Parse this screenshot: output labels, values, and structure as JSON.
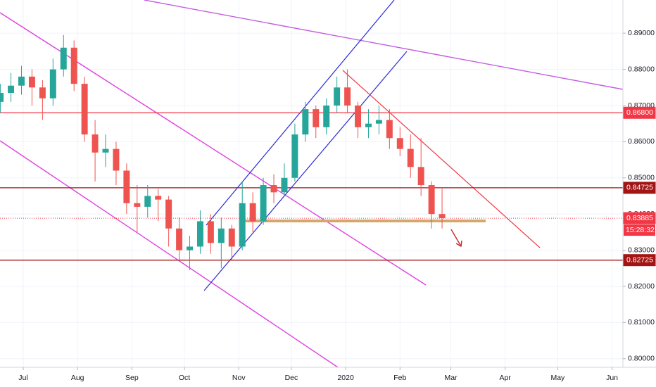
{
  "chart_data": {
    "type": "candlestick",
    "x": [
      -13,
      -7,
      -1,
      5,
      11,
      17,
      23,
      29,
      35,
      41,
      47,
      53,
      59,
      65,
      71,
      77,
      83,
      89,
      95,
      101,
      107,
      113,
      119,
      125,
      131,
      137,
      143,
      149,
      155,
      161,
      167,
      173,
      179,
      185,
      191,
      197,
      203,
      209,
      215,
      221,
      227,
      233,
      239
    ],
    "open": [
      0.871,
      0.8735,
      0.8755,
      0.878,
      0.875,
      0.872,
      0.88,
      0.886,
      0.876,
      0.862,
      0.857,
      0.858,
      0.852,
      0.843,
      0.842,
      0.845,
      0.844,
      0.836,
      0.83,
      0.831,
      0.838,
      0.832,
      0.836,
      0.831,
      0.843,
      0.838,
      0.848,
      0.846,
      0.85,
      0.862,
      0.869,
      0.864,
      0.87,
      0.875,
      0.87,
      0.864,
      0.865,
      0.866,
      0.861,
      0.858,
      0.853,
      0.848,
      0.84
    ],
    "high": [
      0.876,
      0.879,
      0.881,
      0.88,
      0.877,
      0.883,
      0.8895,
      0.888,
      0.878,
      0.866,
      0.862,
      0.86,
      0.854,
      0.848,
      0.848,
      0.847,
      0.845,
      0.839,
      0.834,
      0.841,
      0.84,
      0.839,
      0.837,
      0.849,
      0.846,
      0.85,
      0.851,
      0.854,
      0.865,
      0.871,
      0.87,
      0.872,
      0.878,
      0.88,
      0.871,
      0.869,
      0.87,
      0.869,
      0.864,
      0.862,
      0.861,
      0.849,
      0.847
    ],
    "low": [
      0.868,
      0.871,
      0.873,
      0.87,
      0.866,
      0.87,
      0.878,
      0.874,
      0.86,
      0.849,
      0.853,
      0.848,
      0.84,
      0.835,
      0.839,
      0.838,
      0.831,
      0.827,
      0.8245,
      0.829,
      0.829,
      0.825,
      0.827,
      0.83,
      0.835,
      0.837,
      0.843,
      0.845,
      0.849,
      0.86,
      0.861,
      0.862,
      0.868,
      0.868,
      0.861,
      0.861,
      0.862,
      0.858,
      0.856,
      0.85,
      0.845,
      0.836,
      0.836
    ],
    "close": [
      0.8735,
      0.8755,
      0.878,
      0.875,
      0.872,
      0.88,
      0.886,
      0.876,
      0.862,
      0.857,
      0.858,
      0.852,
      0.843,
      0.842,
      0.845,
      0.844,
      0.836,
      0.83,
      0.831,
      0.838,
      0.832,
      0.836,
      0.831,
      0.843,
      0.838,
      0.848,
      0.846,
      0.85,
      0.862,
      0.869,
      0.864,
      0.87,
      0.875,
      0.87,
      0.864,
      0.865,
      0.866,
      0.861,
      0.858,
      0.853,
      0.848,
      0.84,
      0.83885
    ],
    "up_color": "#26a69a",
    "down_color": "#ef5350",
    "xlim": [
      -13.25,
      342.2
    ],
    "ylim": [
      0.79762,
      0.89918
    ],
    "xticks": [
      {
        "value": 0,
        "label": "Jul"
      },
      {
        "value": 31,
        "label": "Aug"
      },
      {
        "value": 62,
        "label": "Sep"
      },
      {
        "value": 92,
        "label": "Oct"
      },
      {
        "value": 123,
        "label": "Nov"
      },
      {
        "value": 153,
        "label": "Dec"
      },
      {
        "value": 184,
        "label": "2020"
      },
      {
        "value": 215,
        "label": "Feb"
      },
      {
        "value": 244,
        "label": "Mar"
      },
      {
        "value": 275,
        "label": "Apr"
      },
      {
        "value": 305,
        "label": "May"
      },
      {
        "value": 336,
        "label": "Jun"
      }
    ],
    "yticks": [
      {
        "value": 0.89,
        "label": "0.89000"
      },
      {
        "value": 0.88,
        "label": "0.88000"
      },
      {
        "value": 0.87,
        "label": "0.87000"
      },
      {
        "value": 0.86,
        "label": "0.86000"
      },
      {
        "value": 0.85,
        "label": "0.85000"
      },
      {
        "value": 0.84,
        "label": "0.84000"
      },
      {
        "value": 0.83,
        "label": "0.83000"
      },
      {
        "value": 0.82,
        "label": "0.82000"
      },
      {
        "value": 0.81,
        "label": "0.81000"
      },
      {
        "value": 0.8,
        "label": "0.80000"
      }
    ],
    "grid": true,
    "levels": [
      {
        "value": 0.868,
        "label": "0.86800",
        "color": "#f23645"
      },
      {
        "value": 0.84725,
        "label": "0.84725",
        "color": "#a31515"
      },
      {
        "value": 0.82725,
        "label": "0.82725",
        "color": "#a31515"
      }
    ],
    "last_price": {
      "value": 0.83885,
      "label": "0.83885",
      "color": "#f23645"
    },
    "countdown": "15:28:32"
  }
}
